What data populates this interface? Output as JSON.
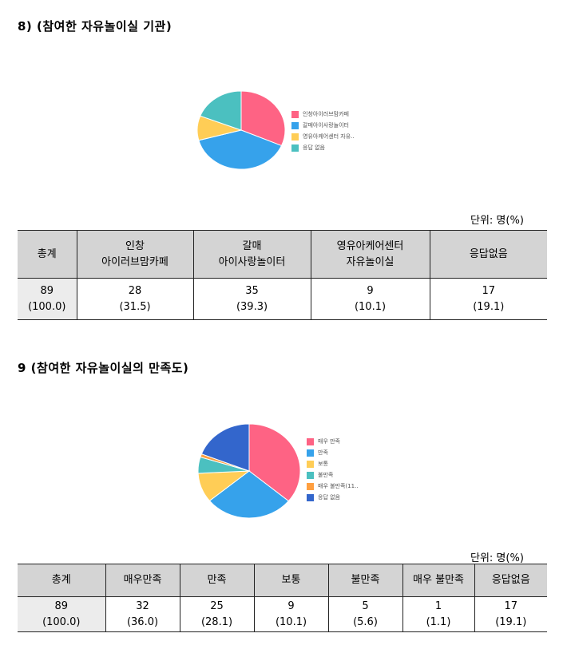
{
  "section1": {
    "title": "8) (참여한 자유놀이실 기관)",
    "unit": "단위: 명(%)",
    "chart_data": {
      "type": "pie",
      "categories": [
        "인창아이러브맘카페",
        "갈매아이사랑놀이터",
        "영유아케어센터 자유..",
        "응답 없음"
      ],
      "values": [
        31.5,
        39.3,
        10.1,
        19.1
      ],
      "colors": [
        "#fe6384",
        "#36a2eb",
        "#ffcd56",
        "#4bc0c0"
      ],
      "legend_position": "right"
    },
    "headers": [
      {
        "top": "총계",
        "bottom": ""
      },
      {
        "top": "인창",
        "bottom": "아이러브맘카페"
      },
      {
        "top": "갈매",
        "bottom": "아이사랑놀이터"
      },
      {
        "top": "영유아케어센터",
        "bottom": "자유놀이실"
      },
      {
        "top": "응답없음",
        "bottom": ""
      }
    ],
    "counts": [
      "89",
      "28",
      "35",
      "9",
      "17"
    ],
    "percents": [
      "(100.0)",
      "(31.5)",
      "(39.3)",
      "(10.1)",
      "(19.1)"
    ]
  },
  "section2": {
    "title": "9 (참여한 자유놀이실의 만족도)",
    "unit": "단위: 명(%)",
    "chart_data": {
      "type": "pie",
      "categories": [
        "매우 만족",
        "만족",
        "보통",
        "불만족",
        "매우 불만족(11..",
        "응답 없음"
      ],
      "values": [
        36.0,
        28.1,
        10.1,
        5.6,
        1.1,
        19.1
      ],
      "colors": [
        "#fe6384",
        "#36a2eb",
        "#ffcd56",
        "#4bc0c0",
        "#ff9f40",
        "#3366cc"
      ],
      "legend_position": "right"
    },
    "headers": [
      "총계",
      "매우만족",
      "만족",
      "보통",
      "불만족",
      "매우 불만족",
      "응답없음"
    ],
    "counts": [
      "89",
      "32",
      "25",
      "9",
      "5",
      "1",
      "17"
    ],
    "percents": [
      "(100.0)",
      "(36.0)",
      "(28.1)",
      "(10.1)",
      "(5.6)",
      "(1.1)",
      "(19.1)"
    ]
  }
}
